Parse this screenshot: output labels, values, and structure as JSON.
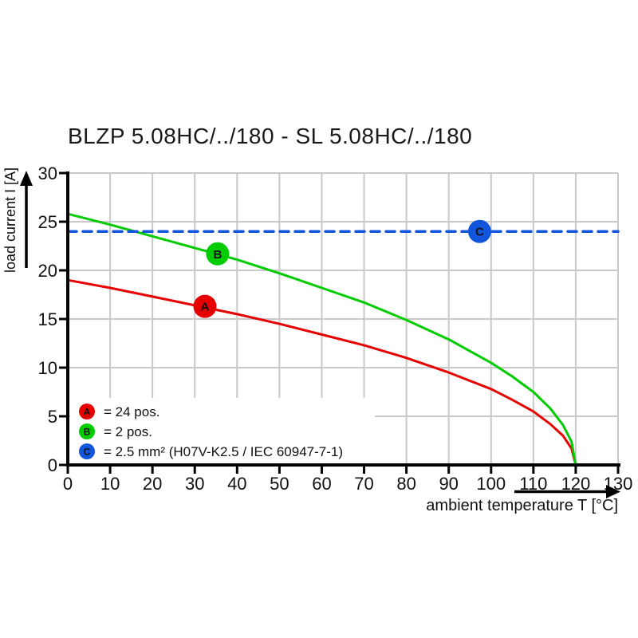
{
  "chart_data": {
    "type": "line",
    "title": "BLZP 5.08HC/../180 - SL 5.08HC/../180",
    "xlabel": "ambient temperature T [°C]",
    "ylabel": "load current I [A]",
    "xlim": [
      0,
      130
    ],
    "ylim": [
      0,
      30
    ],
    "x_ticks": [
      0,
      10,
      20,
      30,
      40,
      50,
      60,
      70,
      80,
      90,
      100,
      110,
      120,
      130
    ],
    "y_ticks": [
      0,
      5,
      10,
      15,
      20,
      25,
      30
    ],
    "grid": true,
    "colors": {
      "grid": "#c9c9c9",
      "axis": "#000000",
      "series_a_red": "#e60000",
      "series_b_green": "#00cc00",
      "series_c_blue": "#1155dd"
    },
    "series": [
      {
        "id": "A",
        "name": "24 pos.",
        "color": "#e60000",
        "dashed": false,
        "points": [
          [
            0,
            19.0
          ],
          [
            10,
            18.2
          ],
          [
            20,
            17.3
          ],
          [
            30,
            16.4
          ],
          [
            40,
            15.5
          ],
          [
            50,
            14.5
          ],
          [
            60,
            13.4
          ],
          [
            70,
            12.3
          ],
          [
            80,
            11.0
          ],
          [
            90,
            9.5
          ],
          [
            100,
            7.8
          ],
          [
            105,
            6.7
          ],
          [
            110,
            5.5
          ],
          [
            114,
            4.2
          ],
          [
            117,
            3.0
          ],
          [
            119,
            1.7
          ],
          [
            120,
            0
          ]
        ]
      },
      {
        "id": "B",
        "name": "2 pos.",
        "color": "#00cc00",
        "dashed": false,
        "points": [
          [
            0,
            25.8
          ],
          [
            10,
            24.7
          ],
          [
            20,
            23.5
          ],
          [
            30,
            22.3
          ],
          [
            40,
            21.1
          ],
          [
            50,
            19.7
          ],
          [
            60,
            18.2
          ],
          [
            70,
            16.7
          ],
          [
            80,
            14.9
          ],
          [
            90,
            12.9
          ],
          [
            100,
            10.5
          ],
          [
            105,
            9.1
          ],
          [
            110,
            7.5
          ],
          [
            114,
            5.8
          ],
          [
            117,
            4.1
          ],
          [
            119,
            2.4
          ],
          [
            120,
            0
          ]
        ]
      },
      {
        "id": "C",
        "name": "2.5 mm² (H07V-K2.5 / IEC 60947-7-1)",
        "color": "#1155dd",
        "dashed": true,
        "points": [
          [
            0,
            24
          ],
          [
            130,
            24
          ]
        ]
      }
    ],
    "markers": [
      {
        "letter": "A",
        "x": 32.4,
        "y": 16.3,
        "color": "#e60000"
      },
      {
        "letter": "B",
        "x": 35.4,
        "y": 21.7,
        "color": "#00cc00"
      },
      {
        "letter": "C",
        "x": 97.3,
        "y": 24.0,
        "color": "#1155dd"
      }
    ],
    "legend": [
      {
        "letter": "A",
        "color": "#e60000",
        "label": "= 24 pos."
      },
      {
        "letter": "B",
        "color": "#00cc00",
        "label": "= 2 pos."
      },
      {
        "letter": "C",
        "color": "#1155dd",
        "label": "= 2.5 mm² (H07V-K2.5 / IEC 60947-7-1)"
      }
    ],
    "legend_position": "lower-left"
  }
}
